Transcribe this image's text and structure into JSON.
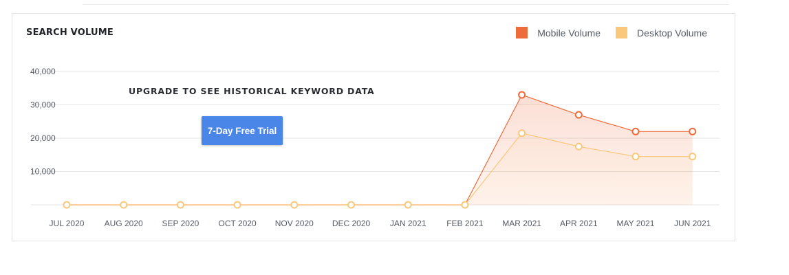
{
  "widget": {
    "title": "SEARCH VOLUME",
    "upgrade_message": "UPGRADE TO SEE HISTORICAL KEYWORD DATA",
    "trial_button_label": "7-Day Free Trial"
  },
  "colors": {
    "mobile": "#ee6b3b",
    "desktop": "#fbc77b",
    "trial_button": "#4a86e8"
  },
  "chart_data": {
    "type": "area",
    "categories": [
      "JUL 2020",
      "AUG 2020",
      "SEP 2020",
      "OCT 2020",
      "NOV 2020",
      "DEC 2020",
      "JAN 2021",
      "FEB 2021",
      "MAR 2021",
      "APR 2021",
      "MAY 2021",
      "JUN 2021"
    ],
    "series": [
      {
        "name": "Mobile Volume",
        "values": [
          0,
          0,
          0,
          0,
          0,
          0,
          0,
          0,
          33000,
          27000,
          22000,
          22000
        ]
      },
      {
        "name": "Desktop Volume",
        "values": [
          0,
          0,
          0,
          0,
          0,
          0,
          0,
          0,
          21500,
          17500,
          14500,
          14500
        ]
      }
    ],
    "y_ticks": [
      "40,000",
      "30,000",
      "20,000",
      "10,000"
    ],
    "ylim": [
      0,
      40000
    ],
    "grid": true,
    "legend_position": "top-right"
  }
}
